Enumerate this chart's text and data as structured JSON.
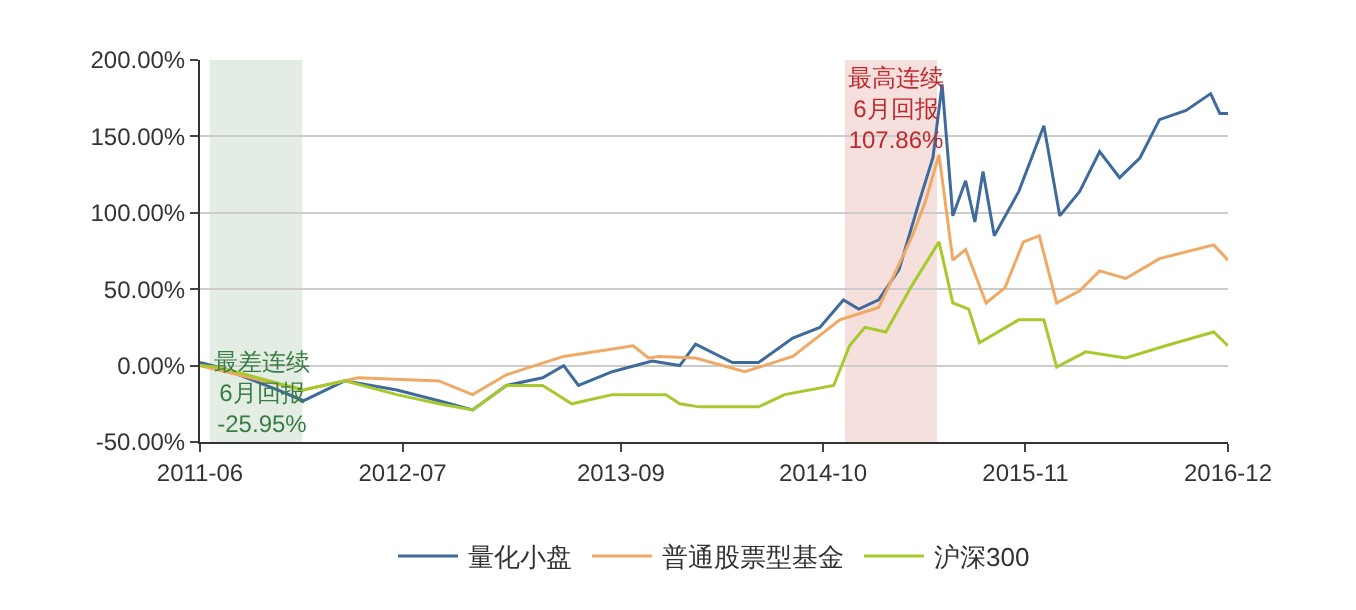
{
  "chart_data": {
    "type": "line",
    "series": [
      {
        "name": "量化小盘",
        "color": "#3e6a9c",
        "x": [
          "2011-06-01",
          "2011-07-07",
          "2011-11-01",
          "2011-12-20",
          "2012-03-10",
          "2012-06-20",
          "2012-09-10",
          "2012-11-15",
          "2013-01-20",
          "2013-04-01",
          "2013-05-12",
          "2013-06-10",
          "2013-08-15",
          "2013-11-01",
          "2013-12-25",
          "2014-01-25",
          "2014-04-07",
          "2014-05-28",
          "2014-08-03",
          "2014-09-25",
          "2014-11-10",
          "2014-12-10",
          "2015-01-18",
          "2015-02-27",
          "2015-04-07",
          "2015-05-04",
          "2015-05-22",
          "2015-06-12",
          "2015-07-07",
          "2015-07-25",
          "2015-08-10",
          "2015-09-01",
          "2015-10-19",
          "2015-12-07",
          "2016-01-07",
          "2016-02-15",
          "2016-03-25",
          "2016-05-03",
          "2016-06-12",
          "2016-07-20",
          "2016-09-10",
          "2016-10-28",
          "2016-11-15",
          "2016-12-01"
        ],
        "values": [
          2,
          -1,
          -16,
          -23,
          -10,
          -16,
          -23,
          -29,
          -13,
          -8,
          0,
          -13,
          -4,
          3,
          0,
          14,
          2,
          2,
          18,
          25,
          43,
          37,
          43,
          63,
          107,
          136,
          184,
          98,
          121,
          94,
          127,
          85,
          114,
          157,
          98,
          114,
          140,
          123,
          136,
          161,
          167,
          178,
          165,
          165
        ]
      },
      {
        "name": "普通股票型基金",
        "color": "#f0a964",
        "x": [
          "2011-06-01",
          "2011-12-20",
          "2012-04-05",
          "2012-09-10",
          "2012-11-15",
          "2013-01-20",
          "2013-05-12",
          "2013-09-25",
          "2013-10-25",
          "2013-11-15",
          "2014-01-25",
          "2014-05-01",
          "2014-08-03",
          "2014-11-03",
          "2015-01-18",
          "2015-03-25",
          "2015-04-19",
          "2015-05-16",
          "2015-06-12",
          "2015-07-07",
          "2015-08-16",
          "2015-09-22",
          "2015-10-28",
          "2015-11-28",
          "2016-01-01",
          "2016-02-15",
          "2016-03-25",
          "2016-05-15",
          "2016-07-20",
          "2016-11-03",
          "2016-12-01"
        ],
        "values": [
          0,
          -16,
          -8,
          -10,
          -19,
          -6,
          6,
          13,
          5,
          6,
          5,
          -4,
          6,
          30,
          38,
          85,
          107,
          138,
          69,
          76,
          41,
          51,
          81,
          85,
          41,
          49,
          62,
          57,
          70,
          79,
          69
        ]
      },
      {
        "name": "沪深300",
        "color": "#a6c92e",
        "x": [
          "2011-06-01",
          "2011-07-07",
          "2011-12-20",
          "2012-03-10",
          "2012-06-20",
          "2012-09-10",
          "2012-11-15",
          "2013-01-20",
          "2013-04-01",
          "2013-05-28",
          "2013-08-15",
          "2013-11-28",
          "2013-12-25",
          "2014-02-01",
          "2014-05-28",
          "2014-07-18",
          "2014-10-22",
          "2014-11-22",
          "2014-12-22",
          "2015-02-01",
          "2015-03-25",
          "2015-05-16",
          "2015-06-12",
          "2015-07-13",
          "2015-08-03",
          "2015-10-19",
          "2015-12-07",
          "2016-01-01",
          "2016-02-27",
          "2016-05-15",
          "2016-08-01",
          "2016-11-03",
          "2016-12-01"
        ],
        "values": [
          0,
          -1,
          -16,
          -10,
          -19,
          -25,
          -29,
          -13,
          -13,
          -25,
          -19,
          -19,
          -25,
          -27,
          -27,
          -19,
          -13,
          13,
          25,
          22,
          53,
          81,
          41,
          37,
          15,
          30,
          30,
          -1,
          9,
          5,
          13,
          22,
          13
        ]
      }
    ],
    "xlim": [
      "2011-06-01",
      "2016-12-01"
    ],
    "xticks": [
      "2011-06",
      "2012-07",
      "2013-09",
      "2014-10",
      "2015-11",
      "2016-12"
    ],
    "ylim": [
      -50,
      200
    ],
    "yticks": [
      {
        "value": -50,
        "label": "-50.00%"
      },
      {
        "value": 0,
        "label": "0.00%"
      },
      {
        "value": 50,
        "label": "50.00%"
      },
      {
        "value": 100,
        "label": "100.00%"
      },
      {
        "value": 150,
        "label": "150.00%"
      },
      {
        "value": 200,
        "label": "200.00%"
      }
    ],
    "bands": [
      {
        "axis": "x",
        "from": "2011-06-20",
        "to": "2011-12-18",
        "label": "最差连续\n6月回报\n-25.95%",
        "color": "#e3ede3"
      },
      {
        "axis": "x",
        "from": "2014-11-13",
        "to": "2015-05-12",
        "label": "最高连续\n6月回报\n107.86%",
        "color": "#f5e0de"
      }
    ],
    "grid": "y",
    "legend": "bottom",
    "marker": "none",
    "line_style": "solid"
  }
}
